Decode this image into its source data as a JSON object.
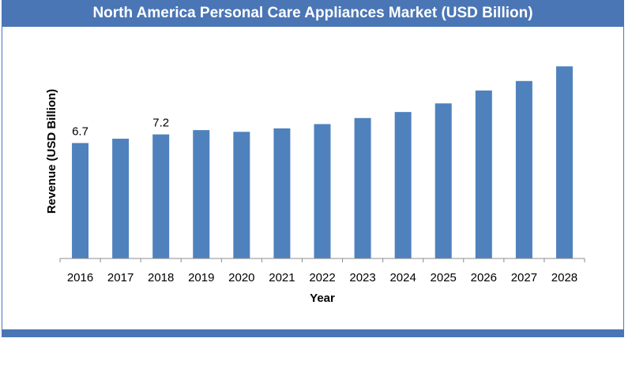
{
  "chart_data": {
    "type": "bar",
    "title": "North America Personal Care Appliances Market (USD Billion)",
    "xlabel": "Year",
    "ylabel": "Revenue (USD Billion)",
    "categories": [
      "2016",
      "2017",
      "2018",
      "2019",
      "2020",
      "2021",
      "2022",
      "2023",
      "2024",
      "2025",
      "2026",
      "2027",
      "2028"
    ],
    "values": [
      6.7,
      6.95,
      7.2,
      7.45,
      7.35,
      7.55,
      7.8,
      8.15,
      8.5,
      9.0,
      9.75,
      10.3,
      11.15
    ],
    "data_labels": [
      {
        "index": 0,
        "text": "6.7"
      },
      {
        "index": 2,
        "text": "7.2"
      }
    ],
    "ylim": [
      0,
      11.8
    ],
    "grid": false,
    "legend": "none",
    "bar_color": "#4f81bd"
  },
  "colors": {
    "frame": "#4a76b6",
    "title_text": "#ffffff"
  }
}
